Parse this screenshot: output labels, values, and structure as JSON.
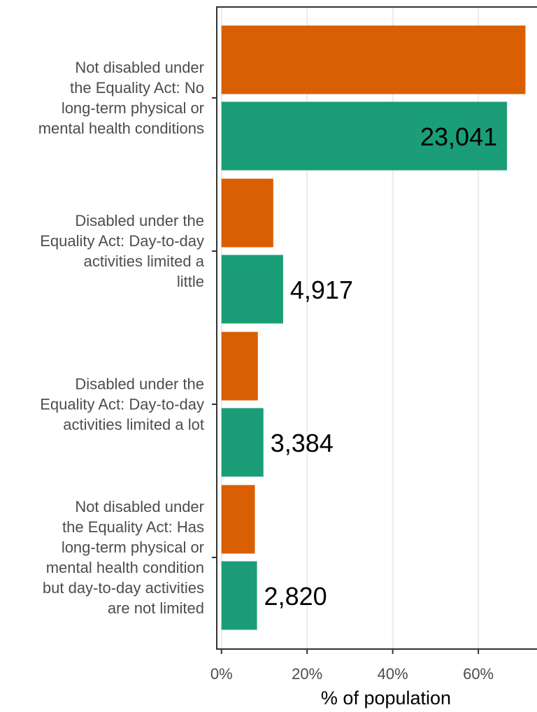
{
  "chart_data": {
    "type": "bar",
    "orientation": "horizontal",
    "categories": [
      "Not disabled under\nthe Equality Act: No\nlong-term physical or\nmental health conditions",
      "Disabled under the\nEquality Act: Day-to-day\nactivities limited a\nlittle",
      "Disabled under the\nEquality Act: Day-to-day\nactivities limited a lot",
      "Not disabled under\nthe Equality Act: Has\nlong-term physical or\nmental health condition\nbut day-to-day activities\nare not limited"
    ],
    "series": [
      {
        "color": "#d95f02",
        "values": [
          71,
          12.1,
          8.5,
          7.8
        ]
      },
      {
        "color": "#1b9e77",
        "values": [
          66.7,
          14.4,
          9.8,
          8.3
        ],
        "data_labels": [
          "23,041",
          "4,917",
          "3,384",
          "2,820"
        ]
      }
    ],
    "xlabel": "% of population",
    "xlim": [
      -1.1,
      73.7
    ],
    "xticks": [
      {
        "value": 0,
        "label": "0%"
      },
      {
        "value": 20,
        "label": "20%"
      },
      {
        "value": 40,
        "label": "40%"
      },
      {
        "value": 60,
        "label": "60%"
      }
    ],
    "grid": true
  }
}
